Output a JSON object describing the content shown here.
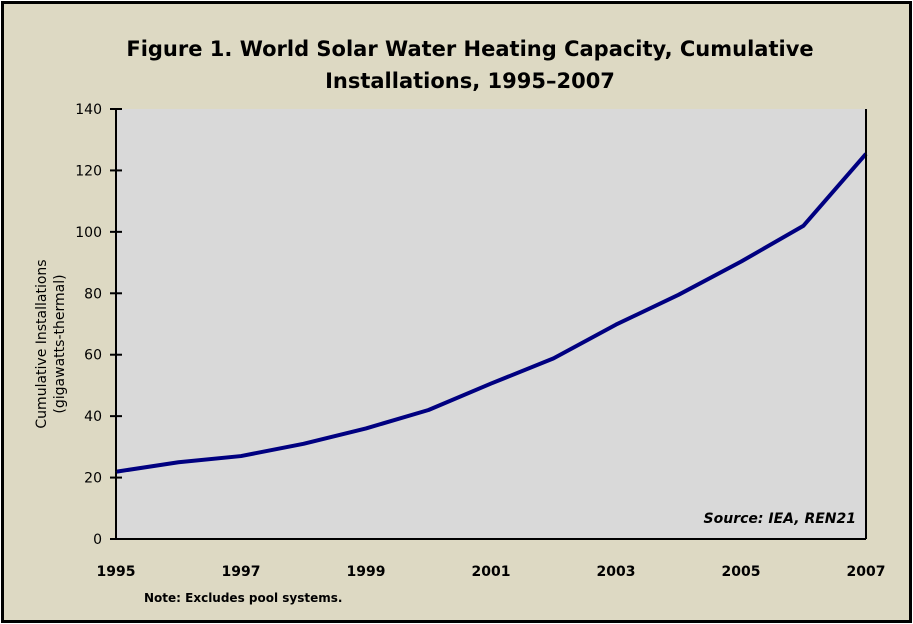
{
  "chart_data": {
    "type": "line",
    "title_lines": [
      "Figure 1. World Solar Water Heating Capacity, Cumulative",
      "Installations, 1995–2007"
    ],
    "ylabel_lines": [
      "Cumulative Installations",
      "(gigawatts-thermal)"
    ],
    "xlabel": "",
    "x": [
      1995,
      1996,
      1997,
      1998,
      1999,
      2000,
      2001,
      2002,
      2003,
      2004,
      2005,
      2006,
      2007
    ],
    "values": [
      21.9,
      25,
      27,
      31,
      36,
      42,
      50.6,
      58.8,
      69.8,
      79.5,
      90.3,
      102,
      125.4
    ],
    "xlim": [
      1995,
      2007
    ],
    "ylim": [
      0,
      140
    ],
    "x_ticks": [
      "1995",
      "1997",
      "1999",
      "2001",
      "2003",
      "2005",
      "2007"
    ],
    "y_ticks": [
      "0",
      "20",
      "40",
      "60",
      "80",
      "100",
      "120",
      "140"
    ],
    "grid": false,
    "annotation": "Source: IEA, REN21",
    "note": "Note: Excludes pool systems.",
    "colors": {
      "line": "#000080",
      "plot_bg": "#d9d9d9",
      "chart_bg": "#ddd9c3"
    }
  }
}
